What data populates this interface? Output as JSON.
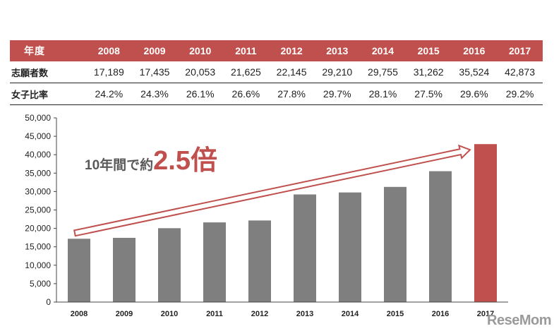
{
  "table": {
    "header_label": "年度",
    "years": [
      "2008",
      "2009",
      "2010",
      "2011",
      "2012",
      "2013",
      "2014",
      "2015",
      "2016",
      "2017"
    ],
    "rows": [
      {
        "label": "志願者数",
        "cells": [
          "17,189",
          "17,435",
          "20,053",
          "21,625",
          "22,145",
          "29,210",
          "29,755",
          "31,262",
          "35,524",
          "42,873"
        ]
      },
      {
        "label": "女子比率",
        "cells": [
          "24.2%",
          "24.3%",
          "26.1%",
          "26.6%",
          "27.8%",
          "29.7%",
          "28.1%",
          "27.5%",
          "29.6%",
          "29.2%"
        ]
      }
    ]
  },
  "chart_data": {
    "type": "bar",
    "categories": [
      "2008",
      "2009",
      "2010",
      "2011",
      "2012",
      "2013",
      "2014",
      "2015",
      "2016",
      "2017"
    ],
    "values": [
      17189,
      17435,
      20053,
      21625,
      22145,
      29210,
      29755,
      31262,
      35524,
      42873
    ],
    "ylim": [
      0,
      50000
    ],
    "yticks": [
      0,
      5000,
      10000,
      15000,
      20000,
      25000,
      30000,
      35000,
      40000,
      45000,
      50000
    ],
    "ytick_labels": [
      "0",
      "5,000",
      "10,000",
      "15,000",
      "20,000",
      "25,000",
      "30,000",
      "35,000",
      "40,000",
      "45,000",
      "50,000"
    ],
    "grid": false,
    "bar_color": "#7f7f7f",
    "highlight_index": 9,
    "highlight_color": "#c0504d",
    "annotation": {
      "prefix": "10年間で約",
      "emphasis": "2.5倍",
      "prefix_color": "#595959",
      "emphasis_color": "#c0504d"
    },
    "arrow_color": "#c0504d"
  },
  "watermark": "ReseMom"
}
